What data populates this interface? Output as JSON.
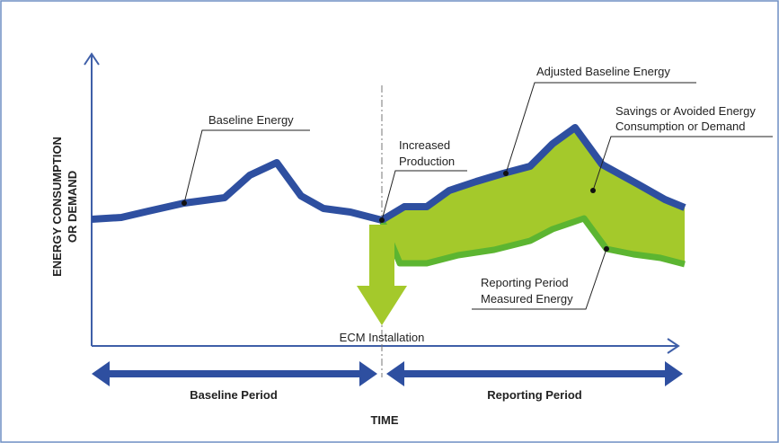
{
  "y_axis_label": {
    "lines": [
      "ENERGY CONSUMPTION",
      "OR DEMAND"
    ]
  },
  "x_axis_label": "TIME",
  "annotations": {
    "baseline_energy": "Baseline Energy",
    "increased_production": [
      "Increased",
      "Production"
    ],
    "adjusted_baseline_energy": "Adjusted Baseline Energy",
    "savings": [
      "Savings or Avoided Energy",
      "Consumption or Demand"
    ],
    "reporting_measured": [
      "Reporting Period",
      "Measured Energy"
    ],
    "ecm_installation": "ECM Installation"
  },
  "periods": {
    "baseline": "Baseline Period",
    "reporting": "Reporting Period"
  }
}
